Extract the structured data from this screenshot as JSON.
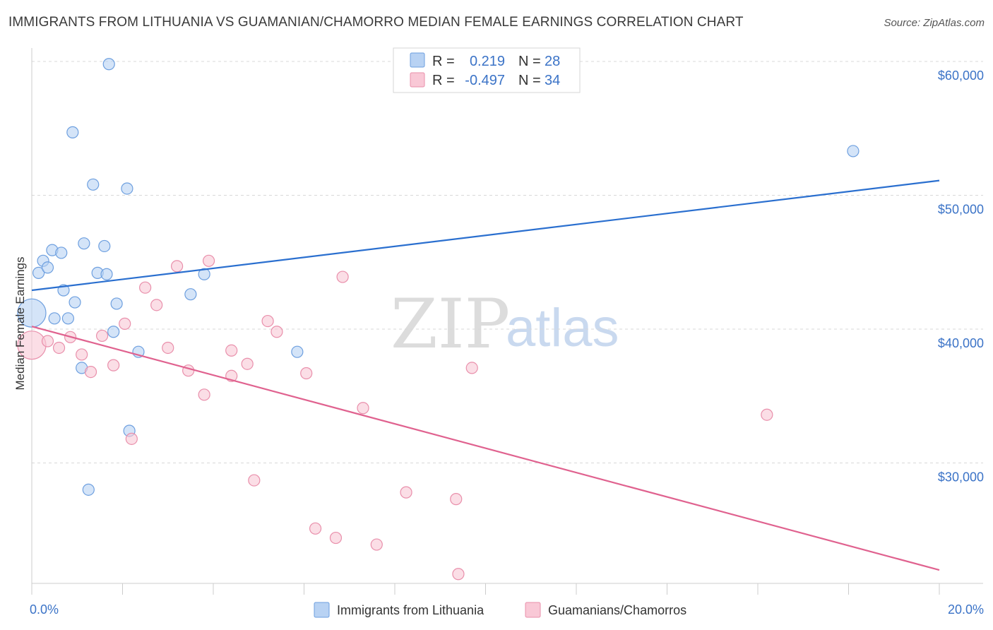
{
  "title": "IMMIGRANTS FROM LITHUANIA VS GUAMANIAN/CHAMORRO MEDIAN FEMALE EARNINGS CORRELATION CHART",
  "source": "Source: ZipAtlas.com",
  "watermark": {
    "zip": "ZIP",
    "atlas": "atlas"
  },
  "colors": {
    "blue_fill": "#b8d2f3",
    "blue_stroke": "#6d9fdf",
    "blue_line": "#2a6fcf",
    "pink_fill": "#f9c8d6",
    "pink_stroke": "#e98fab",
    "pink_line": "#e0628f",
    "axis_text": "#3b73c7",
    "grid": "#d8d8d8"
  },
  "legend": {
    "rows": [
      {
        "r_label": "R =",
        "r_value": "0.219",
        "n_label": "N =",
        "n_value": "28"
      },
      {
        "r_label": "R =",
        "r_value": "-0.497",
        "n_label": "N =",
        "n_value": "34"
      }
    ]
  },
  "bottom_legend": [
    "Immigrants from Lithuania",
    "Guamanians/Chamorros"
  ],
  "chart_data": {
    "type": "scatter",
    "title": "IMMIGRANTS FROM LITHUANIA VS GUAMANIAN/CHAMORRO MEDIAN FEMALE EARNINGS CORRELATION CHART",
    "xlabel": "",
    "ylabel": "Median Female Earnings",
    "xlim": [
      0,
      20
    ],
    "ylim": [
      21000,
      61000
    ],
    "x_tick_labels": [
      "0.0%",
      "20.0%"
    ],
    "y_ticks": [
      30000,
      40000,
      50000,
      60000
    ],
    "y_tick_labels": [
      "$30,000",
      "$40,000",
      "$50,000",
      "$60,000"
    ],
    "grid": true,
    "series": [
      {
        "name": "Immigrants from Lithuania",
        "color": "#b8d2f3",
        "trend": {
          "x": [
            0,
            20
          ],
          "y": [
            42900,
            51100
          ]
        },
        "points": [
          {
            "x": 0.0,
            "y": 41200,
            "big": true
          },
          {
            "x": 0.15,
            "y": 44200
          },
          {
            "x": 0.25,
            "y": 45100
          },
          {
            "x": 0.35,
            "y": 44600
          },
          {
            "x": 0.45,
            "y": 45900
          },
          {
            "x": 0.5,
            "y": 40800
          },
          {
            "x": 0.65,
            "y": 45700
          },
          {
            "x": 0.7,
            "y": 42900
          },
          {
            "x": 0.8,
            "y": 40800
          },
          {
            "x": 0.9,
            "y": 54700
          },
          {
            "x": 0.95,
            "y": 42000
          },
          {
            "x": 1.1,
            "y": 37100
          },
          {
            "x": 1.15,
            "y": 46400
          },
          {
            "x": 1.25,
            "y": 28000
          },
          {
            "x": 1.35,
            "y": 50800
          },
          {
            "x": 1.45,
            "y": 44200
          },
          {
            "x": 1.6,
            "y": 46200
          },
          {
            "x": 1.65,
            "y": 44100
          },
          {
            "x": 1.7,
            "y": 59800
          },
          {
            "x": 1.8,
            "y": 39800
          },
          {
            "x": 1.87,
            "y": 41900
          },
          {
            "x": 2.1,
            "y": 50500
          },
          {
            "x": 2.15,
            "y": 32400
          },
          {
            "x": 2.35,
            "y": 38300
          },
          {
            "x": 3.5,
            "y": 42600
          },
          {
            "x": 3.8,
            "y": 44100
          },
          {
            "x": 5.85,
            "y": 38300
          },
          {
            "x": 18.1,
            "y": 53300
          }
        ]
      },
      {
        "name": "Guamanians/Chamorros",
        "color": "#f9c8d6",
        "trend": {
          "x": [
            0,
            20
          ],
          "y": [
            40200,
            22000
          ]
        },
        "points": [
          {
            "x": 0.0,
            "y": 38800,
            "big": true
          },
          {
            "x": 0.35,
            "y": 39100
          },
          {
            "x": 0.6,
            "y": 38600
          },
          {
            "x": 0.85,
            "y": 39400
          },
          {
            "x": 1.1,
            "y": 38100
          },
          {
            "x": 1.3,
            "y": 36800
          },
          {
            "x": 1.55,
            "y": 39500
          },
          {
            "x": 1.8,
            "y": 37300
          },
          {
            "x": 2.05,
            "y": 40400
          },
          {
            "x": 2.2,
            "y": 31800
          },
          {
            "x": 2.5,
            "y": 43100
          },
          {
            "x": 2.75,
            "y": 41800
          },
          {
            "x": 3.0,
            "y": 38600
          },
          {
            "x": 3.2,
            "y": 44700
          },
          {
            "x": 3.45,
            "y": 36900
          },
          {
            "x": 3.8,
            "y": 35100
          },
          {
            "x": 3.9,
            "y": 45100
          },
          {
            "x": 4.4,
            "y": 36500
          },
          {
            "x": 4.4,
            "y": 38400
          },
          {
            "x": 4.75,
            "y": 37400
          },
          {
            "x": 4.9,
            "y": 28700
          },
          {
            "x": 5.2,
            "y": 40600
          },
          {
            "x": 5.4,
            "y": 39800
          },
          {
            "x": 6.05,
            "y": 36700
          },
          {
            "x": 6.25,
            "y": 25100
          },
          {
            "x": 6.7,
            "y": 24400
          },
          {
            "x": 6.85,
            "y": 43900
          },
          {
            "x": 7.3,
            "y": 34100
          },
          {
            "x": 7.6,
            "y": 23900
          },
          {
            "x": 8.25,
            "y": 27800
          },
          {
            "x": 9.35,
            "y": 27300
          },
          {
            "x": 9.4,
            "y": 21700
          },
          {
            "x": 9.7,
            "y": 37100
          },
          {
            "x": 16.2,
            "y": 33600
          }
        ]
      }
    ]
  }
}
